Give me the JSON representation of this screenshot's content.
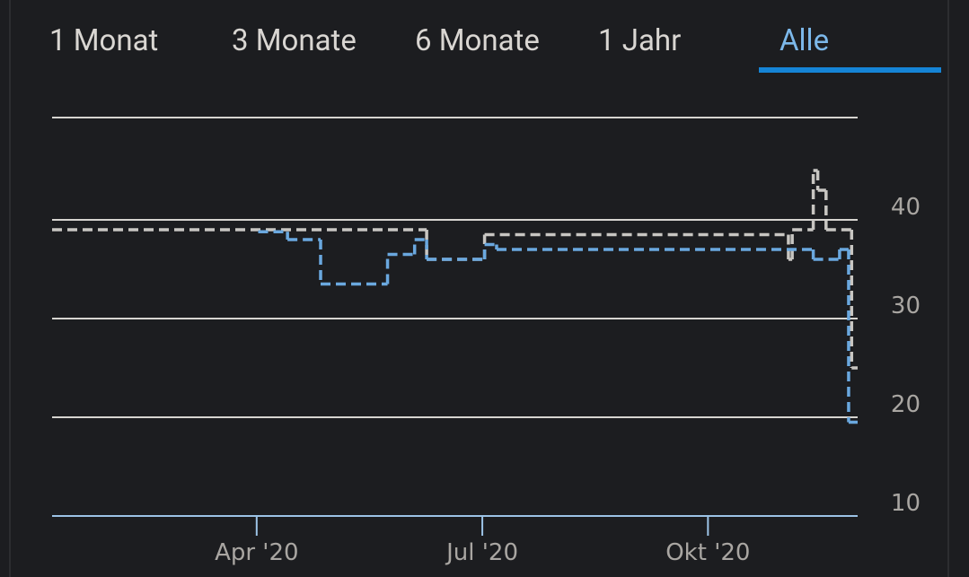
{
  "tabs": [
    "1 Monat",
    "3 Monate",
    "6 Monate",
    "1 Jahr",
    "Alle"
  ],
  "selected_tab": "Alle",
  "chart_data": {
    "type": "step",
    "xlim": [
      1.28,
      11.99
    ],
    "xticks": [
      {
        "value": 4,
        "label": "Apr '20"
      },
      {
        "value": 7,
        "label": "Jul '20"
      },
      {
        "value": 10,
        "label": "Okt '20"
      }
    ],
    "ylim": [
      10,
      50
    ],
    "yticks": [
      10,
      20,
      30,
      40
    ],
    "grid": true,
    "series": [
      {
        "color": "#c8c6c2",
        "x": [
          1.28,
          6.26,
          7.03,
          11.07,
          11.12,
          11.4,
          11.46,
          11.57,
          11.91
        ],
        "values": [
          39,
          36,
          38.5,
          36,
          39,
          45,
          43,
          39,
          25
        ]
      },
      {
        "color": "#6aa8df",
        "x": [
          4.02,
          4.41,
          4.85,
          5.74,
          6.1,
          6.26,
          7.03,
          7.19,
          11.4,
          11.75,
          11.87
        ],
        "values": [
          38.8,
          38,
          33.5,
          36.5,
          38,
          36,
          37.5,
          37,
          36,
          37,
          19.5
        ]
      }
    ]
  }
}
